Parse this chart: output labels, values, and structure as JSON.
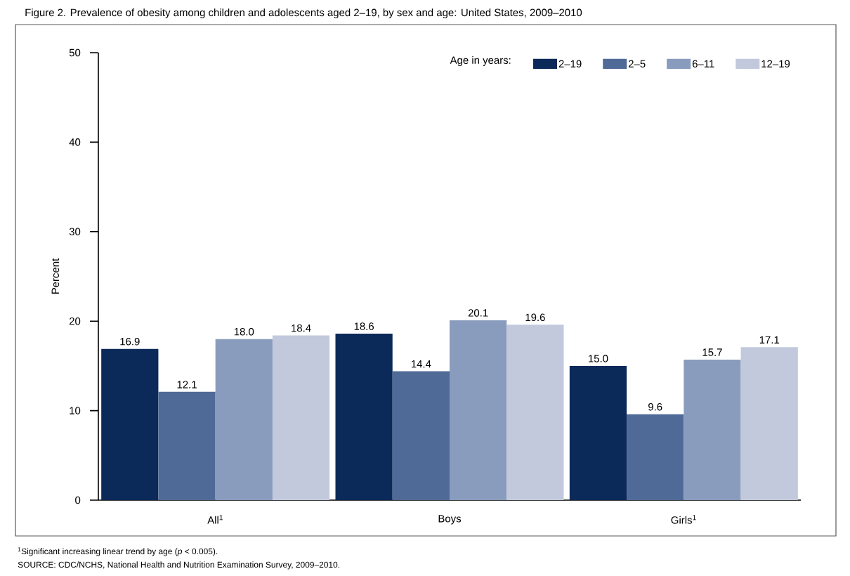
{
  "chart_data": {
    "type": "bar",
    "title": "Figure 2. Prevalence of obesity among children and adolescents aged 2–19, by sex and age: United States, 2009–2010",
    "ylabel": "Percent",
    "legend_title": "Age in years:",
    "categories": [
      "All$^{1}$",
      "Boys",
      "Girls$^{1}$"
    ],
    "series": [
      {
        "name": "2–19",
        "color": "#0b2a5a",
        "values": [
          16.9,
          18.6,
          15.0
        ],
        "value_labels": [
          "16.9",
          "18.6",
          "15.0"
        ]
      },
      {
        "name": "2–5",
        "color": "#506a98",
        "values": [
          12.1,
          14.4,
          9.6
        ],
        "value_labels": [
          "12.1",
          "14.4",
          "9.6"
        ]
      },
      {
        "name": "6–11",
        "color": "#8a9cbd",
        "values": [
          18.0,
          20.1,
          15.7
        ],
        "value_labels": [
          "18.0",
          "20.1",
          "15.7"
        ]
      },
      {
        "name": "12–19",
        "color": "#c2c9dd",
        "values": [
          18.4,
          19.6,
          17.1
        ],
        "value_labels": [
          "18.4",
          "19.6",
          "17.1"
        ]
      }
    ],
    "ylim": [
      0,
      50
    ],
    "yticks": [
      0,
      10,
      20,
      30,
      40,
      50
    ],
    "legend": "top right",
    "grid": false,
    "annotations": [
      "$^{1}$Significant increasing linear trend by age (*p* < 0.005).",
      "SOURCE: CDC/NCHS, National Health and Nutrition Examination Survey, 2009–2010."
    ]
  }
}
